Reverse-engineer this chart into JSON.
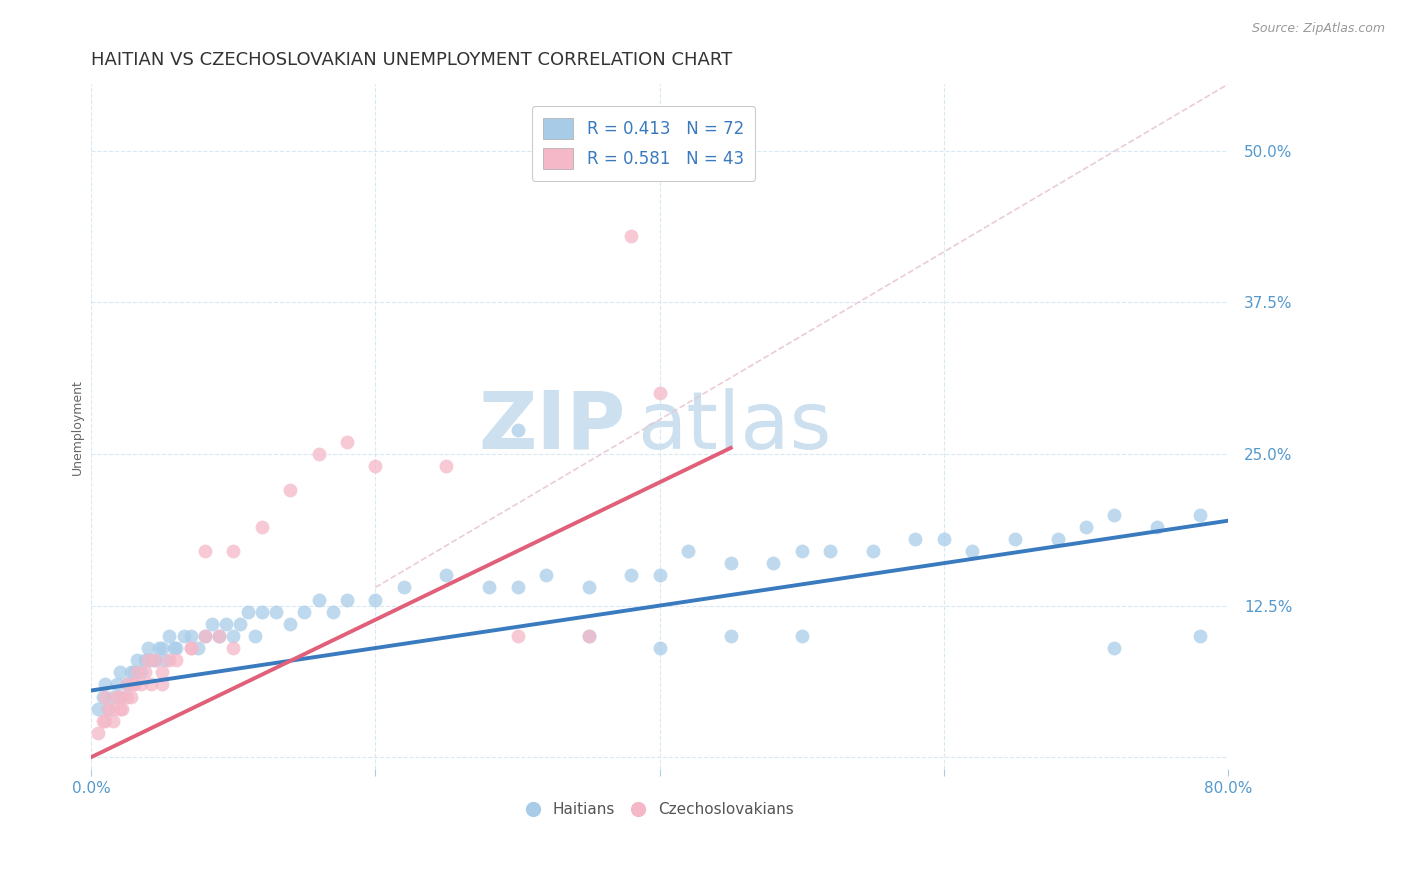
{
  "title": "HAITIAN VS CZECHOSLOVAKIAN UNEMPLOYMENT CORRELATION CHART",
  "source_text": "Source: ZipAtlas.com",
  "ylabel": "Unemployment",
  "xlim": [
    0.0,
    0.8
  ],
  "ylim": [
    -0.01,
    0.555
  ],
  "xtick_vals": [
    0.0,
    0.2,
    0.4,
    0.6,
    0.8
  ],
  "xtick_labels": [
    "0.0%",
    "",
    "",
    "",
    "80.0%"
  ],
  "ytick_vals": [
    0.0,
    0.125,
    0.25,
    0.375,
    0.5
  ],
  "ytick_labels": [
    "",
    "12.5%",
    "25.0%",
    "37.5%",
    "50.0%"
  ],
  "blue_color": "#a8cce8",
  "pink_color": "#f4b8c8",
  "blue_line_color": "#3a7abf",
  "pink_line_color": "#e0607a",
  "dashed_line_color": "#e8c8d0",
  "watermark_zip_color": "#cce0f0",
  "watermark_atlas_color": "#cce0f0",
  "legend_blue_label": "R = 0.413   N = 72",
  "legend_pink_label": "R = 0.581   N = 43",
  "bottom_legend_blue": "Haitians",
  "bottom_legend_pink": "Czechoslovakians",
  "title_fontsize": 13,
  "axis_label_fontsize": 9,
  "tick_fontsize": 11,
  "legend_fontsize": 12,
  "blue_scatter_x": [
    0.005,
    0.008,
    0.01,
    0.012,
    0.015,
    0.018,
    0.02,
    0.022,
    0.025,
    0.028,
    0.03,
    0.032,
    0.035,
    0.038,
    0.04,
    0.042,
    0.045,
    0.048,
    0.05,
    0.052,
    0.055,
    0.058,
    0.06,
    0.065,
    0.07,
    0.075,
    0.08,
    0.085,
    0.09,
    0.095,
    0.1,
    0.105,
    0.11,
    0.115,
    0.12,
    0.13,
    0.14,
    0.15,
    0.16,
    0.17,
    0.18,
    0.2,
    0.22,
    0.25,
    0.28,
    0.3,
    0.32,
    0.35,
    0.38,
    0.4,
    0.42,
    0.45,
    0.48,
    0.5,
    0.52,
    0.55,
    0.58,
    0.6,
    0.62,
    0.65,
    0.68,
    0.7,
    0.72,
    0.75,
    0.78,
    0.3,
    0.35,
    0.4,
    0.45,
    0.5,
    0.72,
    0.78
  ],
  "blue_scatter_y": [
    0.04,
    0.05,
    0.06,
    0.04,
    0.05,
    0.06,
    0.07,
    0.05,
    0.06,
    0.07,
    0.07,
    0.08,
    0.07,
    0.08,
    0.09,
    0.08,
    0.08,
    0.09,
    0.09,
    0.08,
    0.1,
    0.09,
    0.09,
    0.1,
    0.1,
    0.09,
    0.1,
    0.11,
    0.1,
    0.11,
    0.1,
    0.11,
    0.12,
    0.1,
    0.12,
    0.12,
    0.11,
    0.12,
    0.13,
    0.12,
    0.13,
    0.13,
    0.14,
    0.15,
    0.14,
    0.14,
    0.15,
    0.14,
    0.15,
    0.15,
    0.17,
    0.16,
    0.16,
    0.17,
    0.17,
    0.17,
    0.18,
    0.18,
    0.17,
    0.18,
    0.18,
    0.19,
    0.2,
    0.19,
    0.2,
    0.27,
    0.1,
    0.09,
    0.1,
    0.1,
    0.09,
    0.1
  ],
  "pink_scatter_x": [
    0.005,
    0.008,
    0.01,
    0.012,
    0.015,
    0.018,
    0.02,
    0.022,
    0.025,
    0.028,
    0.03,
    0.032,
    0.035,
    0.038,
    0.04,
    0.042,
    0.045,
    0.05,
    0.055,
    0.06,
    0.07,
    0.08,
    0.09,
    0.1,
    0.01,
    0.015,
    0.02,
    0.025,
    0.03,
    0.05,
    0.07,
    0.08,
    0.1,
    0.12,
    0.14,
    0.16,
    0.18,
    0.2,
    0.25,
    0.3,
    0.35,
    0.4,
    0.38
  ],
  "pink_scatter_y": [
    0.02,
    0.03,
    0.03,
    0.04,
    0.04,
    0.05,
    0.05,
    0.04,
    0.06,
    0.05,
    0.06,
    0.07,
    0.06,
    0.07,
    0.08,
    0.06,
    0.08,
    0.07,
    0.08,
    0.08,
    0.09,
    0.1,
    0.1,
    0.09,
    0.05,
    0.03,
    0.04,
    0.05,
    0.06,
    0.06,
    0.09,
    0.17,
    0.17,
    0.19,
    0.22,
    0.25,
    0.26,
    0.24,
    0.24,
    0.1,
    0.1,
    0.3,
    0.43
  ],
  "blue_trend_x": [
    0.0,
    0.8
  ],
  "blue_trend_y": [
    0.055,
    0.195
  ],
  "pink_trend_x": [
    0.0,
    0.45
  ],
  "pink_trend_y": [
    0.0,
    0.255
  ],
  "diag_line_x": [
    0.2,
    0.8
  ],
  "diag_line_y": [
    0.14,
    0.555
  ]
}
